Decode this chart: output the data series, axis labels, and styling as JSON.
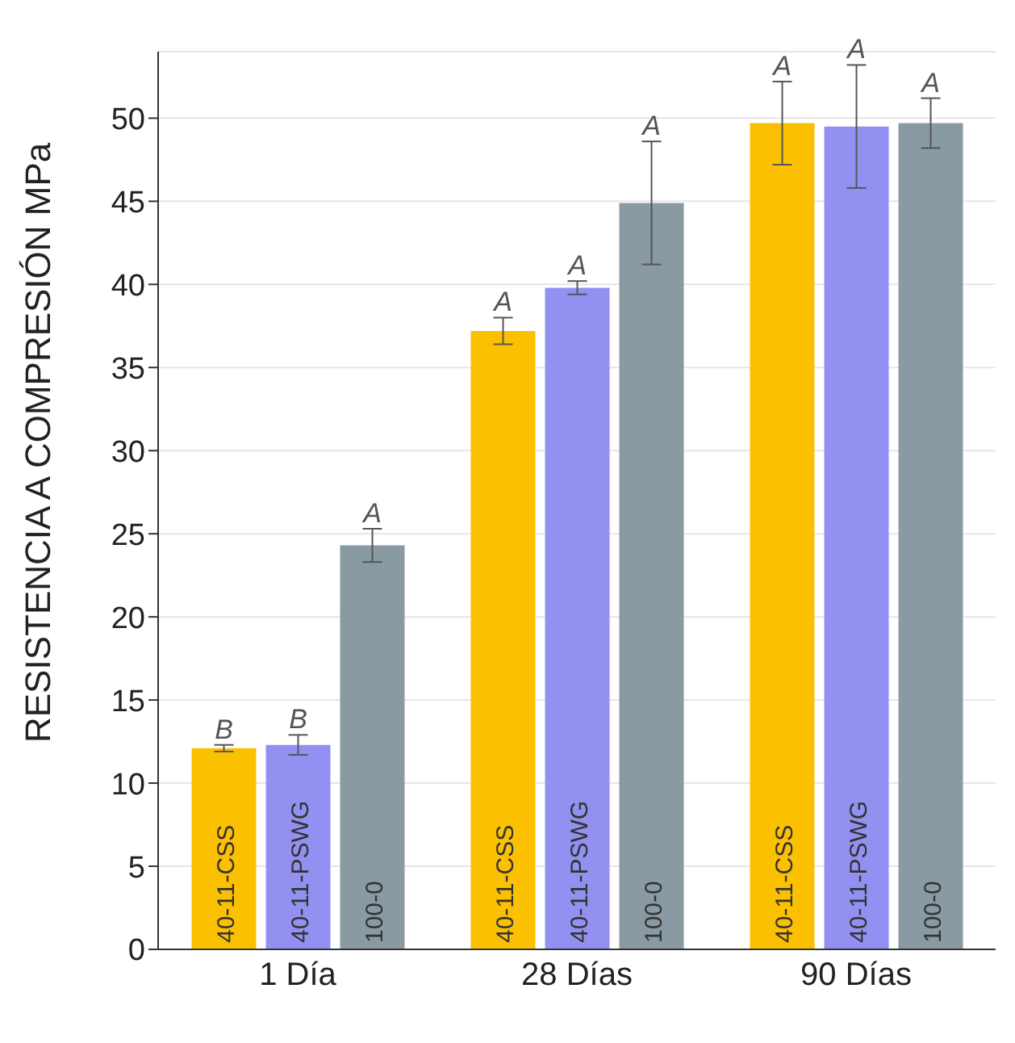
{
  "chart_data": {
    "type": "bar",
    "ylabel": "RESISTENCIA A COMPRESIÓN  MPa",
    "categories": [
      "1 Día",
      "28 Días",
      "90 Días"
    ],
    "series": [
      {
        "name": "40-11-CSS",
        "color": "#fbc000",
        "values": [
          12.1,
          37.2,
          49.7
        ],
        "errors": [
          0.2,
          0.8,
          2.5
        ],
        "value_labels": [
          "B",
          "A",
          "A"
        ]
      },
      {
        "name": "40-11-PSWG",
        "color": "#9291f1",
        "values": [
          12.3,
          39.8,
          49.5
        ],
        "errors": [
          0.6,
          0.4,
          3.7
        ],
        "value_labels": [
          "B",
          "A",
          "A"
        ]
      },
      {
        "name": "100-0",
        "color": "#8a9aa3",
        "values": [
          24.3,
          44.9,
          49.7
        ],
        "errors": [
          1.0,
          3.7,
          1.5
        ],
        "value_labels": [
          "A",
          "A",
          "A"
        ]
      }
    ],
    "ylim": [
      0,
      54
    ],
    "yticks": [
      0,
      5,
      10,
      15,
      20,
      25,
      30,
      35,
      40,
      45,
      50
    ],
    "grid": "y",
    "legend": false
  }
}
